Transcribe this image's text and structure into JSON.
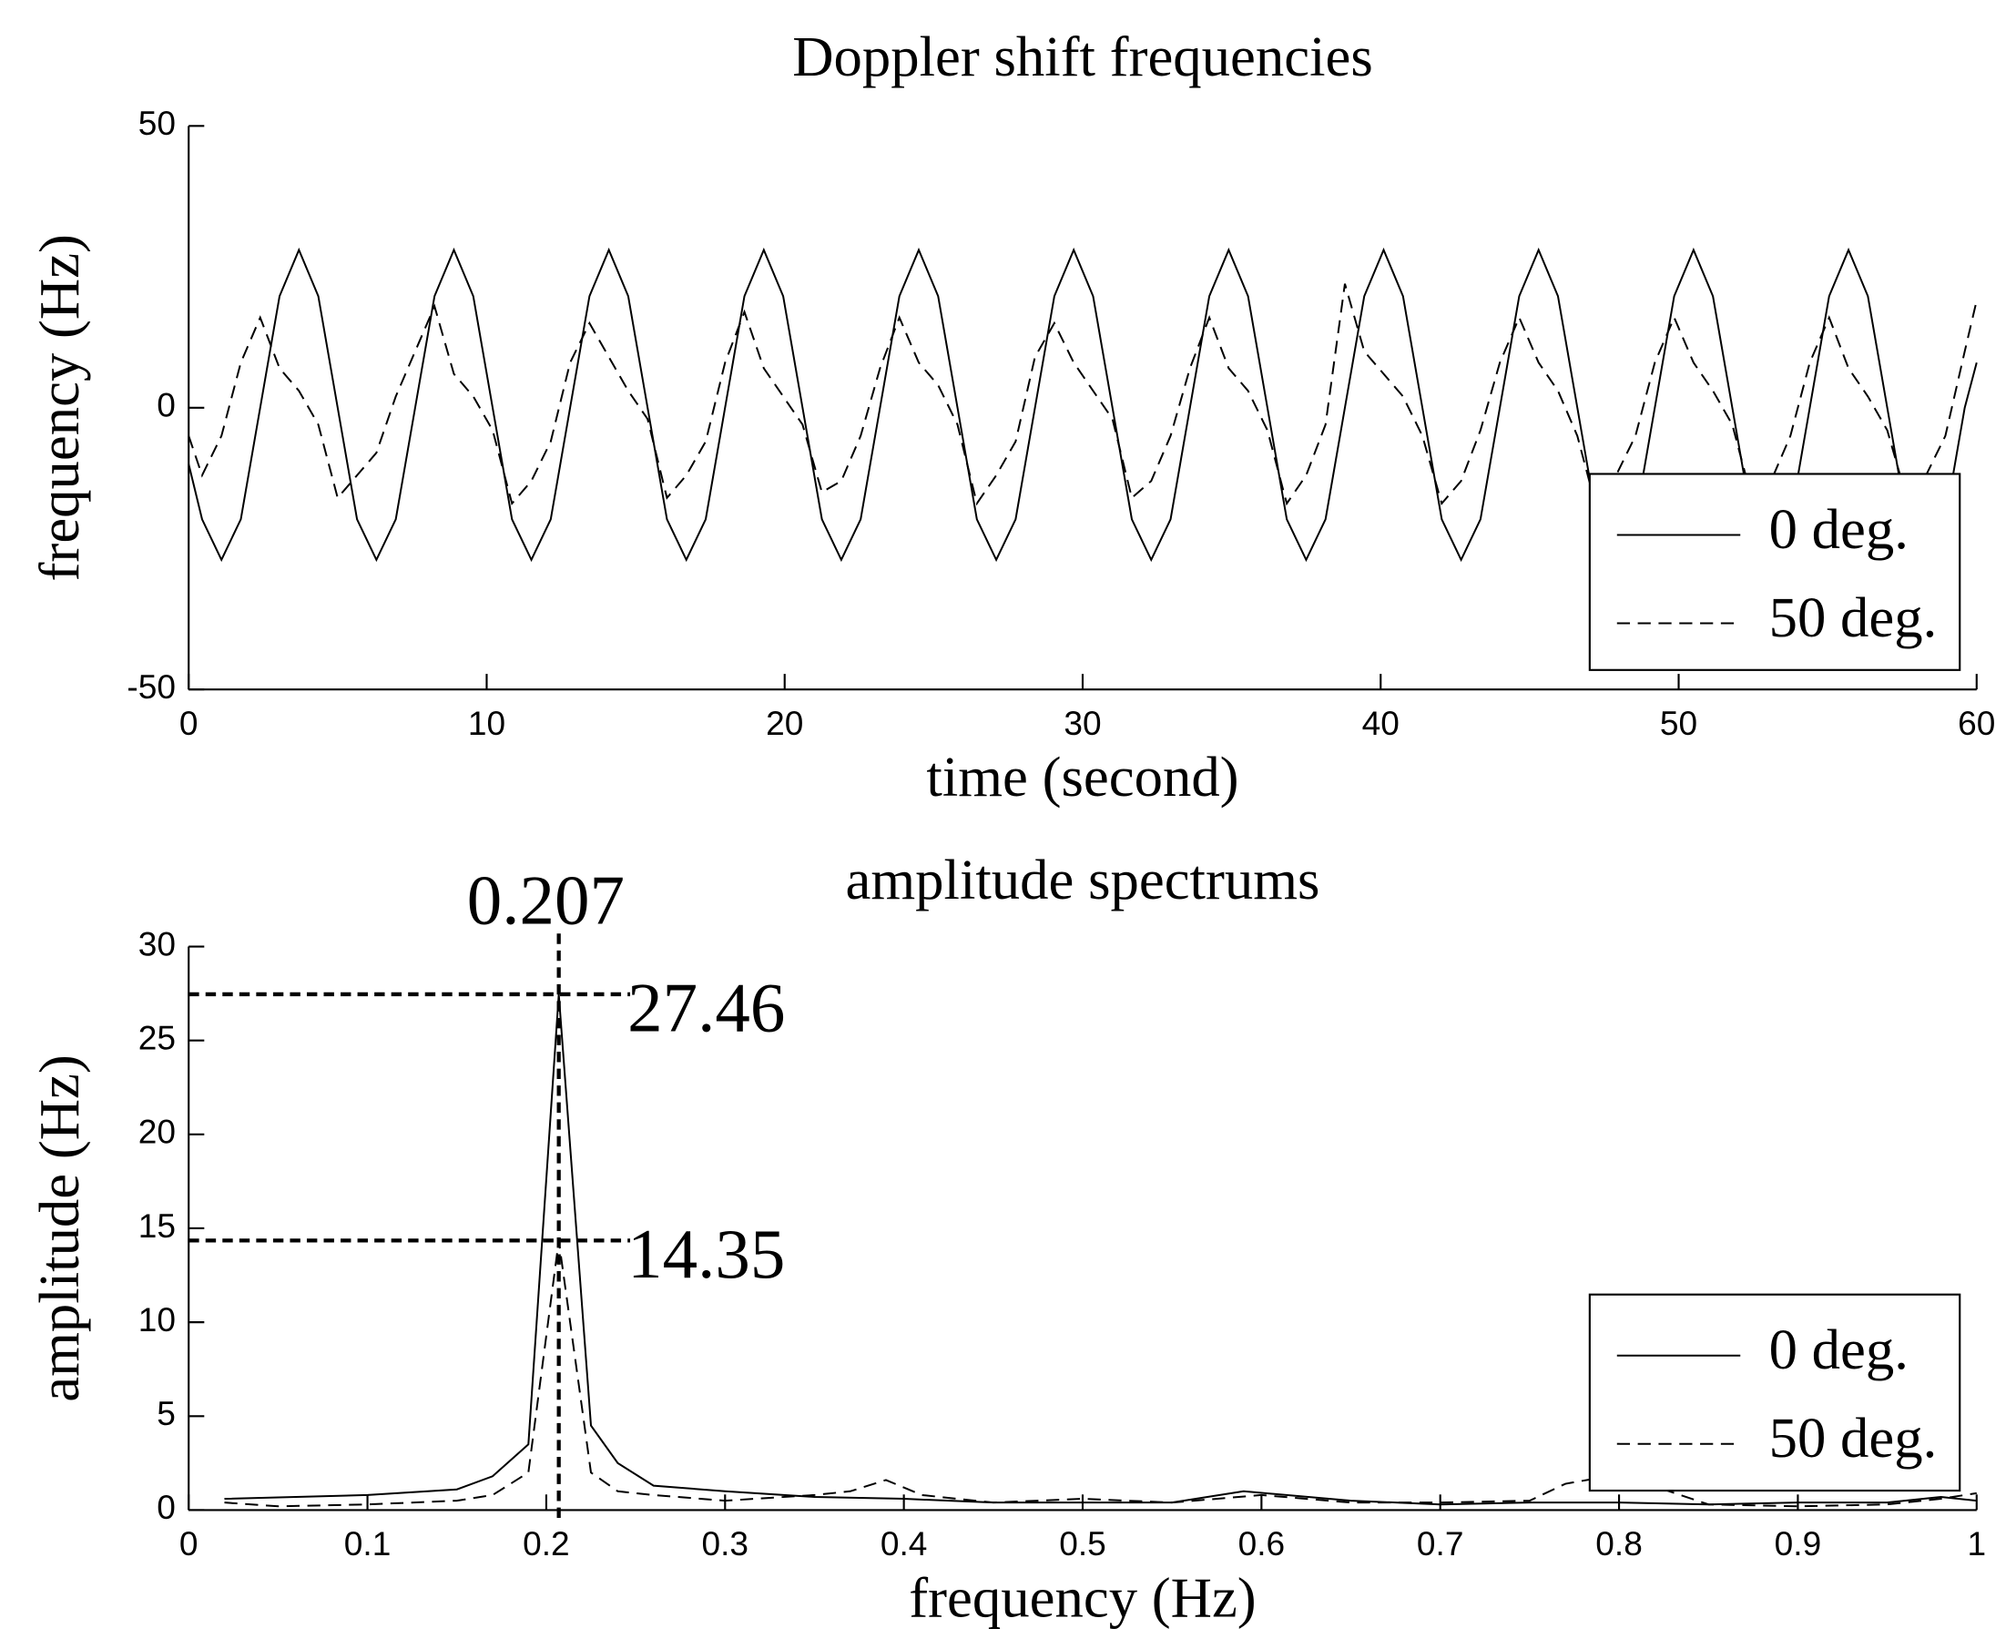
{
  "chart_data": [
    {
      "type": "line",
      "title": "Doppler shift frequencies",
      "xlabel": "time (second)",
      "ylabel": "frequency (Hz)",
      "xlim": [
        0,
        60
      ],
      "xticks": [
        0,
        10,
        20,
        30,
        40,
        50,
        60
      ],
      "ylim": [
        -50,
        50
      ],
      "yticks": [
        -50,
        0,
        50
      ],
      "legend": "lower right",
      "x": [
        0,
        0.45,
        1.1,
        1.75,
        2.4,
        3.05,
        3.7,
        4.35,
        5,
        5.65,
        6.3,
        6.95,
        7.6,
        8.25,
        8.9,
        9.55,
        10.2,
        10.85,
        11.5,
        12.15,
        12.8,
        13.45,
        14.1,
        14.75,
        15.4,
        16.05,
        16.7,
        17.35,
        18,
        18.65,
        19.3,
        19.95,
        20.6,
        21.25,
        21.9,
        22.55,
        23.2,
        23.85,
        24.5,
        25.15,
        25.8,
        26.45,
        27.1,
        27.75,
        28.4,
        29.05,
        29.7,
        30.35,
        31,
        31.65,
        32.3,
        32.95,
        33.6,
        34.25,
        34.9,
        35.55,
        36.2,
        36.85,
        37.5,
        38.15,
        38.8,
        39.45,
        40.1,
        40.75,
        41.4,
        42.05,
        42.7,
        43.35,
        44,
        44.65,
        45.3,
        45.95,
        46.6,
        47.25,
        47.9,
        48.55,
        49.2,
        49.85,
        50.5,
        51.15,
        51.8,
        52.45,
        53.1,
        53.75,
        54.4,
        55.05,
        55.7,
        56.35,
        57,
        57.65,
        58.3,
        58.95,
        59.6,
        60
      ],
      "series": [
        {
          "name": "0 deg.",
          "color": "#000000",
          "dash": "solid",
          "values": [
            -10,
            -19.8,
            -27,
            -19.8,
            0,
            19.8,
            28,
            19.8,
            0,
            -19.8,
            -27,
            -19.8,
            0,
            19.8,
            28,
            19.8,
            0,
            -19.8,
            -27,
            -19.8,
            0,
            19.8,
            28,
            19.8,
            0,
            -19.8,
            -27,
            -19.8,
            0,
            19.8,
            28,
            19.8,
            0,
            -19.8,
            -27,
            -19.8,
            0,
            19.8,
            28,
            19.8,
            0,
            -19.8,
            -27,
            -19.8,
            0,
            19.8,
            28,
            19.8,
            0,
            -19.8,
            -27,
            -19.8,
            0,
            19.8,
            28,
            19.8,
            0,
            -19.8,
            -27,
            -19.8,
            0,
            19.8,
            28,
            19.8,
            0,
            -19.8,
            -27,
            -19.8,
            0,
            19.8,
            28,
            19.8,
            0,
            -19.8,
            -27,
            -19.8,
            0,
            19.8,
            28,
            19.8,
            0,
            -19.8,
            -27,
            -19.8,
            0,
            19.8,
            28,
            19.8,
            0,
            -19.8,
            -27,
            -19.8,
            0,
            8
          ]
        },
        {
          "name": "50 deg.",
          "color": "#000000",
          "dash": "dashed",
          "values": [
            -5,
            -12,
            -5,
            8,
            16,
            7,
            3,
            -3,
            -16,
            -12,
            -8,
            2,
            10,
            18,
            6,
            2,
            -4,
            -17,
            -13,
            -6,
            8,
            15,
            9,
            3,
            -2,
            -16,
            -12,
            -6,
            8,
            17,
            7,
            2,
            -3,
            -15,
            -13,
            -5,
            7,
            16,
            8,
            4,
            -3,
            -17,
            -12,
            -6,
            9,
            15,
            8,
            3,
            -2,
            -16,
            -13,
            -5,
            7,
            16,
            7,
            3,
            -4,
            -17,
            -12,
            -3,
            22,
            10,
            6,
            2,
            -5,
            -17,
            -13,
            -4,
            8,
            16,
            8,
            3,
            -5,
            -18,
            -12,
            -5,
            8,
            16,
            8,
            3,
            -3,
            -16,
            -13,
            -5,
            8,
            16,
            7,
            2,
            -4,
            -16,
            -12,
            -5,
            10,
            19
          ]
        }
      ]
    },
    {
      "type": "line",
      "title": "amplitude spectrums",
      "xlabel": "frequency (Hz)",
      "ylabel": "amplitude (Hz)",
      "xlim": [
        0,
        1
      ],
      "xticks": [
        0,
        0.1,
        0.2,
        0.3,
        0.4,
        0.5,
        0.6,
        0.7,
        0.8,
        0.9,
        1
      ],
      "ylim": [
        0,
        30
      ],
      "yticks": [
        0,
        5,
        10,
        15,
        20,
        25,
        30
      ],
      "legend": "lower right",
      "vlines": [
        {
          "value": 0.207,
          "label": "0.207"
        }
      ],
      "hlines": [
        {
          "value": 27.46,
          "label": "27.46"
        },
        {
          "value": 14.35,
          "label": "14.35"
        }
      ],
      "series": [
        {
          "name": "0 deg.",
          "color": "#000000",
          "dash": "solid",
          "x": [
            0.02,
            0.1,
            0.15,
            0.17,
            0.19,
            0.207,
            0.225,
            0.24,
            0.26,
            0.3,
            0.35,
            0.4,
            0.45,
            0.5,
            0.55,
            0.59,
            0.65,
            0.7,
            0.75,
            0.8,
            0.85,
            0.9,
            0.95,
            0.98,
            1
          ],
          "values": [
            0.6,
            0.8,
            1.1,
            1.8,
            3.5,
            27.46,
            4.5,
            2.5,
            1.3,
            1,
            0.7,
            0.6,
            0.4,
            0.4,
            0.4,
            1,
            0.5,
            0.3,
            0.4,
            0.4,
            0.3,
            0.4,
            0.4,
            0.7,
            0.5
          ]
        },
        {
          "name": "50 deg.",
          "color": "#000000",
          "dash": "dashed",
          "x": [
            0.02,
            0.05,
            0.1,
            0.15,
            0.17,
            0.19,
            0.207,
            0.225,
            0.24,
            0.26,
            0.3,
            0.35,
            0.37,
            0.39,
            0.41,
            0.45,
            0.5,
            0.55,
            0.6,
            0.65,
            0.7,
            0.75,
            0.77,
            0.8,
            0.85,
            0.9,
            0.95,
            0.98,
            1
          ],
          "values": [
            0.4,
            0.2,
            0.3,
            0.5,
            0.8,
            2,
            14.35,
            2,
            1,
            0.8,
            0.5,
            0.8,
            1,
            1.6,
            0.8,
            0.4,
            0.6,
            0.4,
            0.8,
            0.4,
            0.4,
            0.5,
            1.4,
            1.9,
            0.3,
            0.2,
            0.3,
            0.6,
            0.9
          ]
        }
      ]
    }
  ]
}
